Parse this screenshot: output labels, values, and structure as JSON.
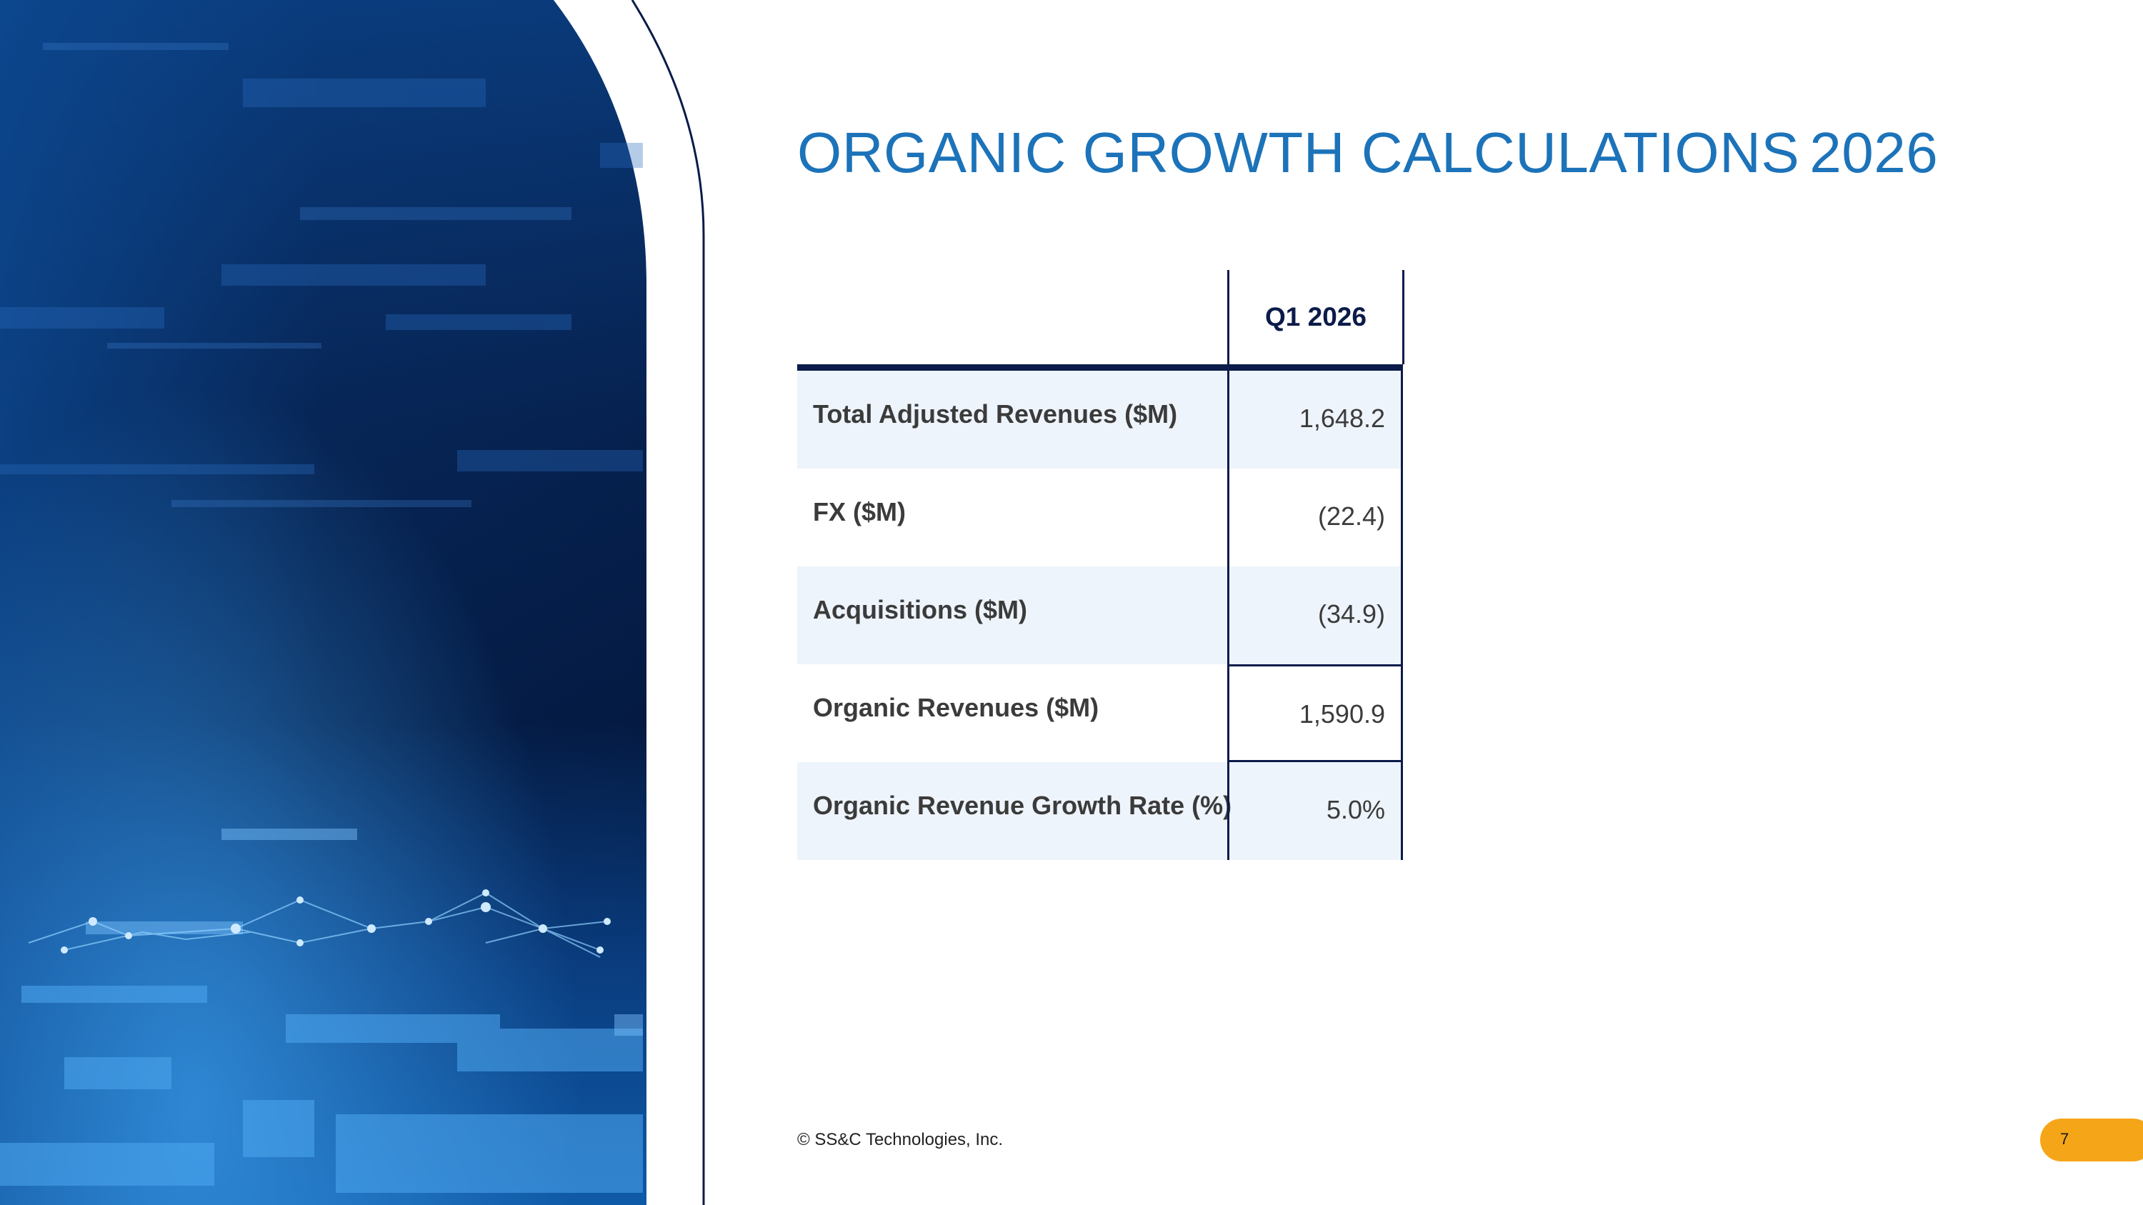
{
  "title": {
    "main": "ORGANIC GROWTH CALCULATIONS",
    "year": "2026"
  },
  "table": {
    "column_header": "Q1 2026",
    "rows": [
      {
        "label": "Total Adjusted Revenues ($M)",
        "value": "1,648.2"
      },
      {
        "label": "FX ($M)",
        "value": "(22.4)"
      },
      {
        "label": "Acquisitions ($M)",
        "value": "(34.9)"
      },
      {
        "label": "Organic Revenues ($M)",
        "value": "1,590.9"
      },
      {
        "label": "Organic Revenue Growth Rate (%)",
        "value": "5.0%"
      }
    ]
  },
  "footer": {
    "copyright": "© SS&C Technologies, Inc.",
    "page_number": "7"
  },
  "colors": {
    "title": "#1c73b9",
    "navy": "#0b1b4a",
    "row_shade": "#eef4fb",
    "page_badge": "#f5a618"
  }
}
